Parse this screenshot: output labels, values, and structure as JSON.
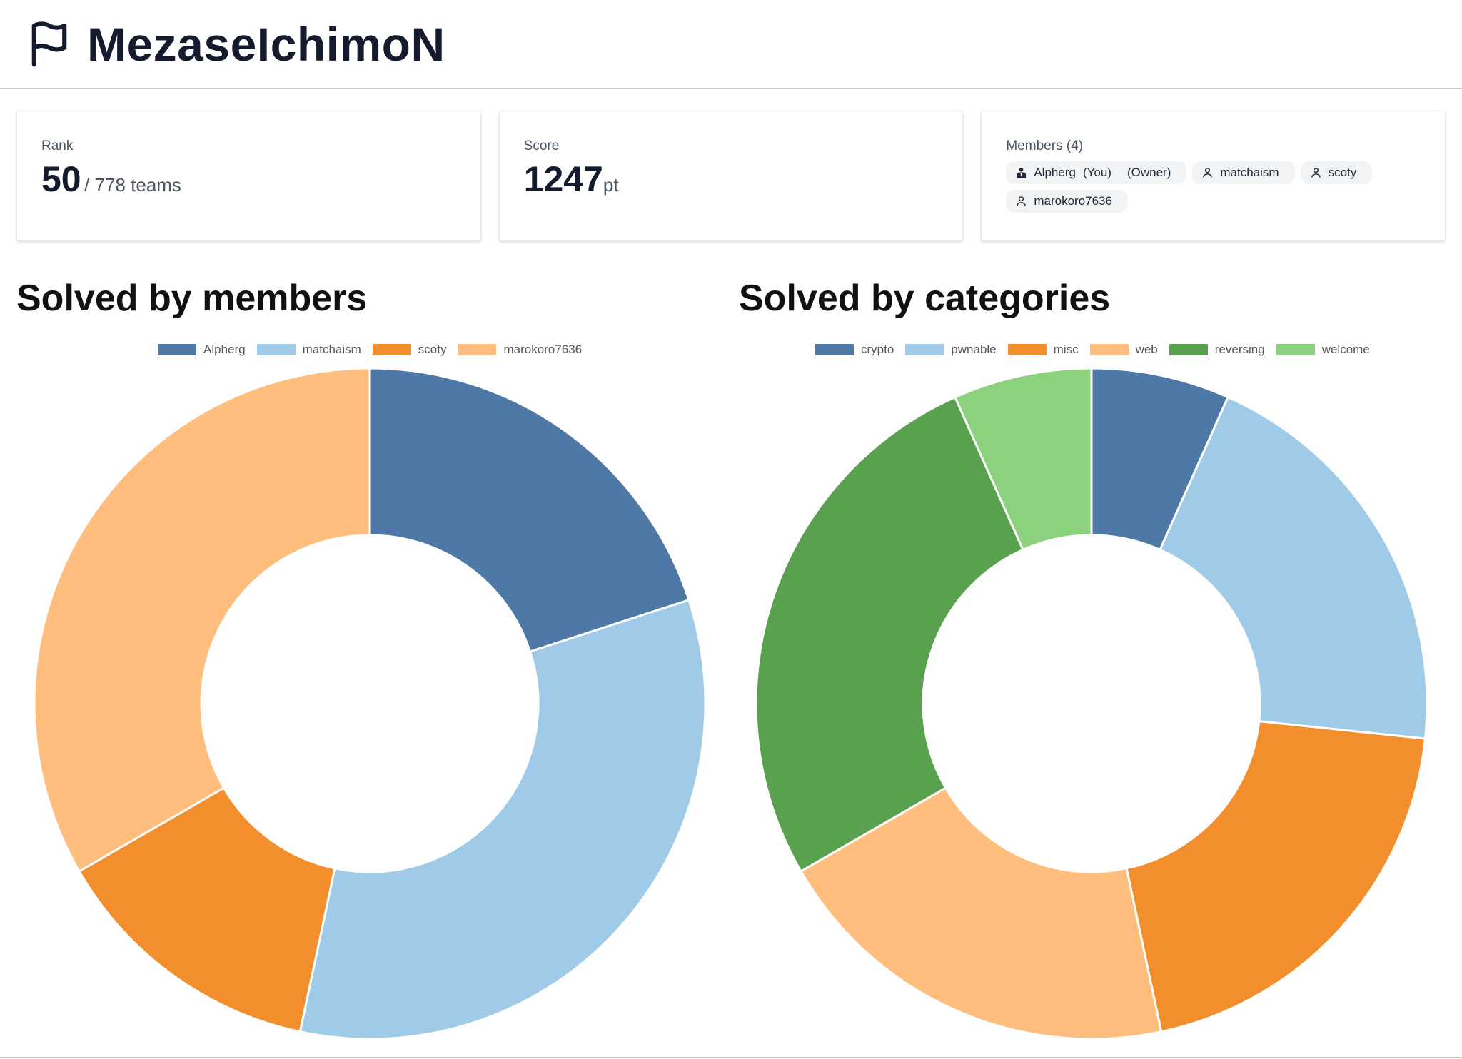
{
  "header": {
    "title": "MezaseIchimoN",
    "icon": "flag-icon"
  },
  "cards": {
    "rank": {
      "label": "Rank",
      "value": "50",
      "suffix": "/ 778 teams"
    },
    "score": {
      "label": "Score",
      "value": "1247",
      "unit": "pt"
    },
    "members": {
      "label": "Members (4)",
      "list": [
        {
          "name": "Alpherg",
          "you": "(You)",
          "owner": "(Owner)",
          "icon": "user-tie-icon"
        },
        {
          "name": "matchaism",
          "icon": "user-icon"
        },
        {
          "name": "scoty",
          "icon": "user-icon"
        },
        {
          "name": "marokoro7636",
          "icon": "user-icon"
        }
      ]
    }
  },
  "chart_data": [
    {
      "type": "pie",
      "title": "Solved by members",
      "legend": "top",
      "categories": [
        "Alpherg",
        "matchaism",
        "scoty",
        "marokoro7636"
      ],
      "values": [
        3,
        5,
        2,
        5
      ],
      "colors": [
        "#4e79a7",
        "#a0cbe8",
        "#f28e2b",
        "#ffbe7d"
      ]
    },
    {
      "type": "pie",
      "title": "Solved by categories",
      "legend": "top",
      "categories": [
        "crypto",
        "pwnable",
        "misc",
        "web",
        "reversing",
        "welcome"
      ],
      "values": [
        1,
        3,
        3,
        3,
        4,
        1
      ],
      "colors": [
        "#4e79a7",
        "#a0cbe8",
        "#f28e2b",
        "#ffbe7d",
        "#59a14f",
        "#8cd17d"
      ]
    }
  ]
}
